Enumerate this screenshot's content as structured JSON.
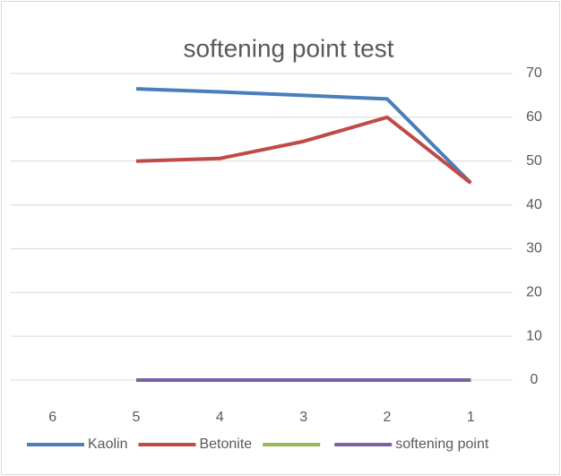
{
  "chart_data": {
    "type": "line",
    "title": "softening point test",
    "categories": [
      "6",
      "5",
      "4",
      "3",
      "2",
      "1"
    ],
    "series": [
      {
        "name": "Kaolin",
        "color": "#4a7ebb",
        "values": [
          null,
          66.5,
          65.8,
          65,
          64.2,
          45
        ]
      },
      {
        "name": "Betonite",
        "color": "#be4b48",
        "values": [
          null,
          50,
          50.6,
          54.5,
          60,
          45
        ]
      },
      {
        "color": "#98b954",
        "values": [
          null,
          0,
          0,
          0,
          0,
          0
        ]
      },
      {
        "name": "softening point",
        "color": "#7d60a0",
        "values": [
          null,
          0,
          0,
          0,
          0,
          0
        ]
      }
    ],
    "ylim": [
      0,
      70
    ],
    "yticks": [
      0,
      10,
      20,
      30,
      40,
      50,
      60,
      70
    ],
    "grid": true,
    "legend": "bottom"
  }
}
